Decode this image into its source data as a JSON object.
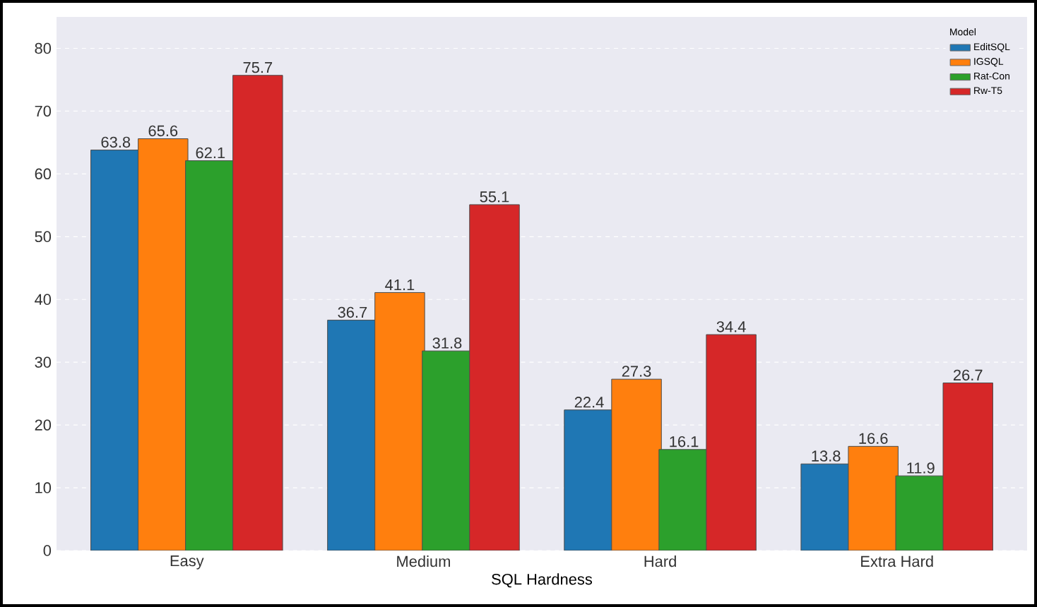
{
  "chart_data": {
    "type": "bar",
    "xlabel": "SQL Hardness",
    "legend_title": "Model",
    "categories": [
      "Easy",
      "Medium",
      "Hard",
      "Extra Hard"
    ],
    "series": [
      {
        "name": "EditSQL",
        "color": "#1f77b4",
        "values": [
          63.8,
          36.7,
          22.4,
          13.8
        ]
      },
      {
        "name": "IGSQL",
        "color": "#ff7f0e",
        "values": [
          65.6,
          41.1,
          27.3,
          16.6
        ]
      },
      {
        "name": "Rat-Con",
        "color": "#2ca02c",
        "values": [
          62.1,
          31.8,
          16.1,
          11.9
        ]
      },
      {
        "name": "Rw-T5",
        "color": "#d62728",
        "values": [
          75.7,
          55.1,
          34.4,
          26.7
        ]
      }
    ],
    "ylim": [
      0,
      85
    ],
    "yticks": [
      0,
      10,
      20,
      30,
      40,
      50,
      60,
      70,
      80
    ],
    "grid": true,
    "legend": "top right",
    "data_labels": true
  }
}
